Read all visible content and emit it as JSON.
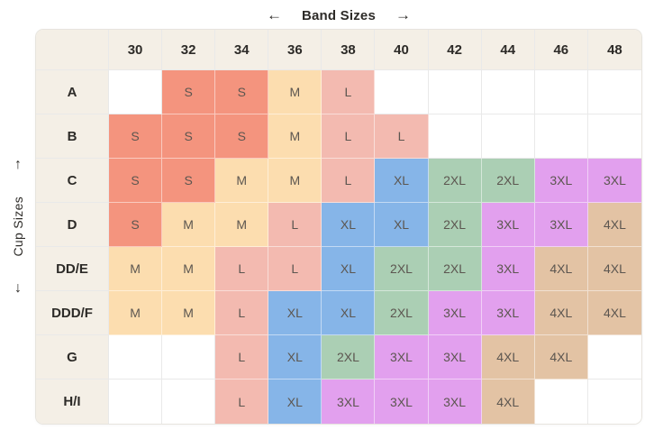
{
  "header": {
    "arrow_left": "←",
    "title": "Band Sizes",
    "arrow_right": "→"
  },
  "y_axis": {
    "arrow_up": "↑",
    "label": "Cup Sizes",
    "arrow_down": "↓"
  },
  "chart_data": {
    "type": "heatmap",
    "title": "Band Sizes",
    "x_label": "Band Sizes",
    "y_label": "Cup Sizes",
    "columns": [
      "30",
      "32",
      "34",
      "36",
      "38",
      "40",
      "42",
      "44",
      "46",
      "48"
    ],
    "rows": [
      "A",
      "B",
      "C",
      "D",
      "DD/E",
      "DDD/F",
      "G",
      "H/I"
    ],
    "cells": [
      [
        "",
        "S",
        "S",
        "M",
        "L",
        "",
        "",
        "",
        "",
        ""
      ],
      [
        "S",
        "S",
        "S",
        "M",
        "L",
        "L",
        "",
        "",
        "",
        ""
      ],
      [
        "S",
        "S",
        "M",
        "M",
        "L",
        "XL",
        "2XL",
        "2XL",
        "3XL",
        "3XL"
      ],
      [
        "S",
        "M",
        "M",
        "L",
        "XL",
        "XL",
        "2XL",
        "3XL",
        "3XL",
        "4XL"
      ],
      [
        "M",
        "M",
        "L",
        "L",
        "XL",
        "2XL",
        "2XL",
        "3XL",
        "4XL",
        "4XL"
      ],
      [
        "M",
        "M",
        "L",
        "XL",
        "XL",
        "2XL",
        "3XL",
        "3XL",
        "4XL",
        "4XL"
      ],
      [
        "",
        "",
        "L",
        "XL",
        "2XL",
        "3XL",
        "3XL",
        "4XL",
        "4XL",
        ""
      ],
      [
        "",
        "",
        "L",
        "XL",
        "3XL",
        "3XL",
        "3XL",
        "4XL",
        "",
        ""
      ]
    ],
    "size_colors": {
      "S": "#f4947e",
      "M": "#fcddaf",
      "L": "#f3bab0",
      "XL": "#86b5e8",
      "2XL": "#abcfb4",
      "3XL": "#e2a0ee",
      "4XL": "#e3c3a4"
    },
    "header_bg": "#f4efe6",
    "empty_cell_bg": "#ffffff",
    "grid_color": "#e9e9e9",
    "cell_text_color": "#5c5650",
    "label_text_color": "#2d2b28",
    "legend_position": "none",
    "grid": true
  }
}
